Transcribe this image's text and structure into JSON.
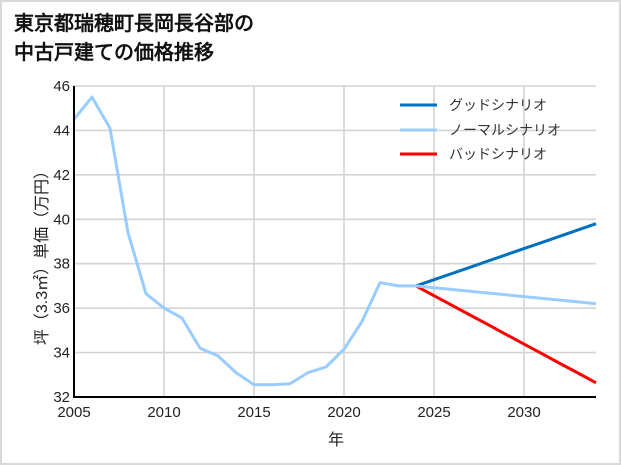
{
  "header": {
    "title_line1": "東京都瑞穂町長岡長谷部の",
    "title_line2": "中古戸建ての価格推移"
  },
  "axes": {
    "xlabel": "年",
    "ylabel": "坪（3.3㎡）単価（万円）"
  },
  "legend": {
    "items": [
      {
        "label": "グッドシナリオ",
        "color": "#0070c0"
      },
      {
        "label": "ノーマルシナリオ",
        "color": "#99ccff"
      },
      {
        "label": "バッドシナリオ",
        "color": "#ff0000"
      }
    ]
  },
  "chart_data": {
    "type": "line",
    "title": "東京都瑞穂町長岡長谷部の中古戸建ての価格推移",
    "xlabel": "年",
    "ylabel": "坪（3.3㎡）単価（万円）",
    "xlim": [
      2005,
      2034
    ],
    "ylim": [
      32,
      46
    ],
    "xticks": [
      2005,
      2010,
      2015,
      2020,
      2025,
      2030
    ],
    "yticks": [
      32,
      34,
      36,
      38,
      40,
      42,
      44,
      46
    ],
    "grid": true,
    "legend_position": "upper right",
    "series": [
      {
        "name": "グッドシナリオ",
        "color": "#0070c0",
        "x": [
          2024,
          2025,
          2026,
          2027,
          2028,
          2029,
          2030,
          2031,
          2032,
          2033,
          2034
        ],
        "values": [
          37.0,
          37.28,
          37.56,
          37.84,
          38.12,
          38.4,
          38.68,
          38.96,
          39.24,
          39.52,
          39.8
        ]
      },
      {
        "name": "バッドシナリオ",
        "color": "#ff0000",
        "x": [
          2024,
          2025,
          2026,
          2027,
          2028,
          2029,
          2030,
          2031,
          2032,
          2033,
          2034
        ],
        "values": [
          37.0,
          36.56,
          36.13,
          35.69,
          35.26,
          34.82,
          34.38,
          33.95,
          33.51,
          33.08,
          32.64
        ]
      },
      {
        "name": "ノーマルシナリオ",
        "color": "#99ccff",
        "x": [
          2005,
          2006,
          2007,
          2008,
          2009,
          2010,
          2011,
          2012,
          2013,
          2014,
          2015,
          2016,
          2017,
          2018,
          2019,
          2020,
          2021,
          2022,
          2023,
          2024,
          2025,
          2026,
          2027,
          2028,
          2029,
          2030,
          2031,
          2032,
          2033,
          2034
        ],
        "values": [
          44.5,
          45.5,
          44.1,
          39.4,
          36.65,
          36.0,
          35.55,
          34.2,
          33.85,
          33.1,
          32.55,
          32.55,
          32.6,
          33.1,
          33.35,
          34.15,
          35.4,
          37.15,
          37.0,
          37.0,
          36.92,
          36.84,
          36.76,
          36.68,
          36.6,
          36.52,
          36.44,
          36.36,
          36.28,
          36.2
        ]
      }
    ]
  }
}
